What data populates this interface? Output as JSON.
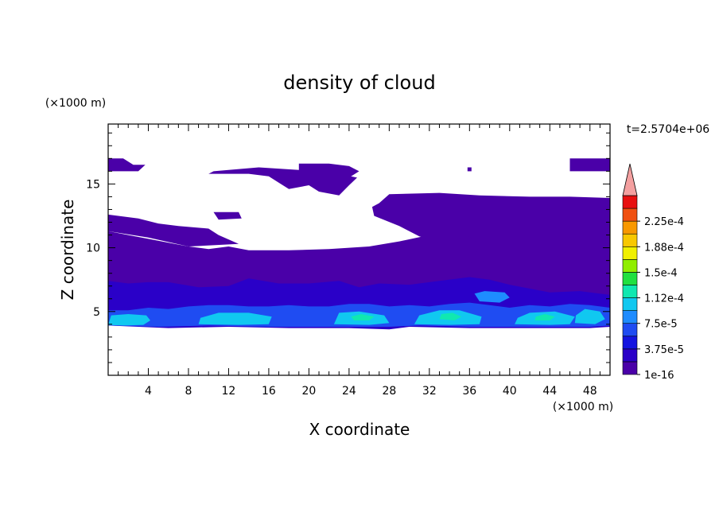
{
  "chart_data": {
    "type": "heatmap",
    "title": "density of cloud",
    "xlabel": "X coordinate",
    "ylabel": "Z coordinate",
    "x_unit": "(×1000 m)",
    "y_unit": "(×1000 m)",
    "time_label": "t=2.5704e+06",
    "xlim": [
      0,
      50
    ],
    "ylim": [
      0,
      19.7
    ],
    "x_ticks": [
      4,
      8,
      12,
      16,
      20,
      24,
      28,
      32,
      36,
      40,
      44,
      48
    ],
    "y_ticks": [
      5,
      10,
      15
    ],
    "colorbar": {
      "labels": [
        "1e-16",
        "3.75e-5",
        "7.5e-5",
        "1.12e-4",
        "1.5e-4",
        "1.88e-4",
        "2.25e-4"
      ],
      "label_levels": [
        0,
        2,
        4,
        6,
        8,
        10,
        12
      ],
      "colors": [
        "#4a00a8",
        "#2a00c8",
        "#1414e0",
        "#1f4cf2",
        "#1e8cff",
        "#10c8f0",
        "#10e8b0",
        "#20e040",
        "#90ee00",
        "#f0f000",
        "#f8c800",
        "#f89800",
        "#f05010",
        "#e81010"
      ],
      "extend_color": "#f4a0a0"
    },
    "regions": [
      {
        "level": 0,
        "points": [
          [
            0,
            4.4
          ],
          [
            3,
            4.1
          ],
          [
            6,
            4.1
          ],
          [
            10,
            4.0
          ],
          [
            14,
            4.1
          ],
          [
            18,
            4.1
          ],
          [
            22,
            4.1
          ],
          [
            26,
            4.1
          ],
          [
            28.5,
            3.9
          ],
          [
            31,
            4.1
          ],
          [
            35,
            4.1
          ],
          [
            39,
            4.1
          ],
          [
            43,
            4.1
          ],
          [
            47,
            4.1
          ],
          [
            50,
            4.1
          ],
          [
            50,
            10.9
          ],
          [
            47,
            11.2
          ],
          [
            44,
            11.0
          ],
          [
            41,
            10.9
          ],
          [
            38,
            11.2
          ],
          [
            35,
            11.2
          ],
          [
            32,
            11.0
          ],
          [
            29,
            10.5
          ],
          [
            26,
            10.1
          ],
          [
            22,
            9.9
          ],
          [
            18,
            9.8
          ],
          [
            14,
            9.8
          ],
          [
            12,
            10.1
          ],
          [
            10,
            9.9
          ],
          [
            8,
            10.1
          ],
          [
            6,
            10.4
          ],
          [
            4,
            10.7
          ],
          [
            2,
            11.0
          ],
          [
            0,
            11.3
          ]
        ]
      },
      {
        "level": 1,
        "points": [
          [
            0,
            3.9
          ],
          [
            6,
            3.7
          ],
          [
            12,
            3.8
          ],
          [
            18,
            3.7
          ],
          [
            24,
            3.7
          ],
          [
            28,
            3.6
          ],
          [
            30,
            3.8
          ],
          [
            36,
            3.7
          ],
          [
            42,
            3.7
          ],
          [
            48,
            3.7
          ],
          [
            50,
            3.8
          ],
          [
            50,
            6.3
          ],
          [
            47,
            6.6
          ],
          [
            44,
            6.5
          ],
          [
            40,
            7.1
          ],
          [
            38,
            7.5
          ],
          [
            36,
            7.7
          ],
          [
            33,
            7.4
          ],
          [
            30,
            7.1
          ],
          [
            27,
            7.2
          ],
          [
            25,
            6.9
          ],
          [
            23,
            7.4
          ],
          [
            20,
            7.2
          ],
          [
            17,
            7.2
          ],
          [
            14,
            7.6
          ],
          [
            12,
            7.0
          ],
          [
            9,
            6.9
          ],
          [
            6,
            7.3
          ],
          [
            4,
            7.3
          ],
          [
            2,
            7.2
          ],
          [
            0,
            7.4
          ]
        ]
      },
      {
        "level": 3,
        "points": [
          [
            0,
            3.9
          ],
          [
            5,
            3.8
          ],
          [
            10,
            3.9
          ],
          [
            16,
            3.8
          ],
          [
            22,
            3.8
          ],
          [
            28,
            3.8
          ],
          [
            31,
            3.9
          ],
          [
            36,
            3.8
          ],
          [
            42,
            3.8
          ],
          [
            48,
            3.8
          ],
          [
            50,
            3.9
          ],
          [
            50,
            5.3
          ],
          [
            48,
            5.5
          ],
          [
            46,
            5.6
          ],
          [
            44,
            5.4
          ],
          [
            42,
            5.5
          ],
          [
            40,
            5.3
          ],
          [
            38,
            5.5
          ],
          [
            36,
            5.7
          ],
          [
            34,
            5.6
          ],
          [
            32,
            5.4
          ],
          [
            30,
            5.5
          ],
          [
            28,
            5.4
          ],
          [
            26,
            5.6
          ],
          [
            24,
            5.6
          ],
          [
            22,
            5.4
          ],
          [
            20,
            5.4
          ],
          [
            18,
            5.5
          ],
          [
            16,
            5.4
          ],
          [
            14,
            5.4
          ],
          [
            12,
            5.5
          ],
          [
            10,
            5.5
          ],
          [
            8,
            5.4
          ],
          [
            6,
            5.2
          ],
          [
            4,
            5.3
          ],
          [
            2,
            5.1
          ],
          [
            0,
            5.1
          ]
        ]
      },
      {
        "level": 4,
        "points": [
          [
            36.5,
            6.4
          ],
          [
            37.5,
            6.6
          ],
          [
            39.5,
            6.5
          ],
          [
            40,
            6.1
          ],
          [
            39,
            5.7
          ],
          [
            37,
            5.8
          ]
        ]
      },
      {
        "level": 5,
        "points": [
          [
            0,
            3.95
          ],
          [
            1.5,
            3.9
          ],
          [
            3.5,
            3.95
          ],
          [
            4.2,
            4.3
          ],
          [
            3.8,
            4.7
          ],
          [
            2,
            4.8
          ],
          [
            0.3,
            4.7
          ]
        ]
      },
      {
        "level": 5,
        "points": [
          [
            9,
            4.0
          ],
          [
            13,
            3.95
          ],
          [
            16,
            4.0
          ],
          [
            16.3,
            4.6
          ],
          [
            14,
            4.9
          ],
          [
            11,
            4.9
          ],
          [
            9.2,
            4.5
          ]
        ]
      },
      {
        "level": 5,
        "points": [
          [
            22.5,
            4.0
          ],
          [
            26,
            3.95
          ],
          [
            28,
            4.1
          ],
          [
            27.5,
            4.7
          ],
          [
            25,
            5.0
          ],
          [
            23,
            4.9
          ]
        ]
      },
      {
        "level": 5,
        "points": [
          [
            30.5,
            4.0
          ],
          [
            34,
            3.95
          ],
          [
            37,
            4.0
          ],
          [
            37.2,
            4.6
          ],
          [
            35,
            5.1
          ],
          [
            33,
            5.1
          ],
          [
            31,
            4.7
          ]
        ]
      },
      {
        "level": 5,
        "points": [
          [
            40.5,
            4.0
          ],
          [
            44,
            3.95
          ],
          [
            46,
            4.0
          ],
          [
            46.5,
            4.6
          ],
          [
            44.5,
            5.0
          ],
          [
            42,
            4.9
          ],
          [
            40.8,
            4.5
          ]
        ]
      },
      {
        "level": 5,
        "points": [
          [
            46.5,
            4.1
          ],
          [
            48.5,
            4.0
          ],
          [
            49.5,
            4.4
          ],
          [
            49,
            5.0
          ],
          [
            47.5,
            5.2
          ],
          [
            46.6,
            4.7
          ]
        ]
      },
      {
        "level": 6,
        "points": [
          [
            24.5,
            4.3
          ],
          [
            26,
            4.3
          ],
          [
            26.5,
            4.6
          ],
          [
            25.2,
            4.8
          ],
          [
            24.2,
            4.6
          ]
        ]
      },
      {
        "level": 6,
        "points": [
          [
            33,
            4.4
          ],
          [
            34.5,
            4.3
          ],
          [
            35.2,
            4.6
          ],
          [
            34.3,
            4.9
          ],
          [
            33.2,
            4.8
          ]
        ]
      },
      {
        "level": 6,
        "points": [
          [
            42.5,
            4.3
          ],
          [
            44,
            4.3
          ],
          [
            44.5,
            4.6
          ],
          [
            43.5,
            4.8
          ],
          [
            42.6,
            4.6
          ]
        ]
      },
      {
        "level": 0,
        "points": [
          [
            0,
            12.6
          ],
          [
            3,
            12.3
          ],
          [
            5,
            11.9
          ],
          [
            7,
            11.7
          ],
          [
            10,
            11.5
          ],
          [
            11,
            11.0
          ],
          [
            13,
            10.3
          ],
          [
            8,
            10.1
          ],
          [
            4,
            10.8
          ],
          [
            0,
            11.3
          ]
        ]
      },
      {
        "level": 0,
        "points": [
          [
            0,
            17.0
          ],
          [
            1.5,
            17.0
          ],
          [
            2.5,
            16.5
          ],
          [
            3.7,
            16.5
          ],
          [
            3,
            16.0
          ],
          [
            0,
            16.0
          ]
        ]
      },
      {
        "level": 0,
        "points": [
          [
            10,
            15.8
          ],
          [
            14,
            15.8
          ],
          [
            16,
            15.6
          ],
          [
            17,
            15.1
          ],
          [
            18,
            14.6
          ],
          [
            20,
            14.9
          ],
          [
            21,
            14.4
          ],
          [
            23,
            14.1
          ],
          [
            24,
            14.9
          ],
          [
            24.8,
            15.5
          ],
          [
            23,
            15.8
          ],
          [
            21,
            16.1
          ],
          [
            19,
            16.1
          ],
          [
            17,
            16.2
          ],
          [
            15,
            16.3
          ],
          [
            12,
            16.1
          ],
          [
            10.5,
            16.0
          ]
        ]
      },
      {
        "level": 0,
        "points": [
          [
            19,
            16.6
          ],
          [
            22,
            16.6
          ],
          [
            24,
            16.4
          ],
          [
            25,
            16.0
          ],
          [
            24,
            15.5
          ],
          [
            21,
            15.6
          ],
          [
            19,
            15.8
          ]
        ]
      },
      {
        "level": 0,
        "points": [
          [
            28,
            14.2
          ],
          [
            33,
            14.3
          ],
          [
            37,
            14.1
          ],
          [
            42,
            14.0
          ],
          [
            46,
            14.0
          ],
          [
            50,
            13.9
          ],
          [
            50,
            9.9
          ],
          [
            47,
            10.4
          ],
          [
            45,
            9.4
          ],
          [
            43,
            8.4
          ],
          [
            42,
            8.1
          ],
          [
            40,
            8.6
          ],
          [
            38,
            9.1
          ],
          [
            36,
            8.6
          ],
          [
            36.5,
            9.3
          ],
          [
            37,
            10.2
          ],
          [
            36,
            10.9
          ],
          [
            33,
            10.4
          ],
          [
            31,
            10.9
          ],
          [
            29,
            11.7
          ],
          [
            26.5,
            12.5
          ],
          [
            26.3,
            13.2
          ],
          [
            27,
            13.5
          ]
        ]
      },
      {
        "level": 0,
        "points": [
          [
            46,
            17.0
          ],
          [
            50,
            17.0
          ],
          [
            50,
            16.0
          ],
          [
            46,
            16.0
          ]
        ]
      },
      {
        "level": 0,
        "points": [
          [
            10.5,
            12.8
          ],
          [
            13,
            12.8
          ],
          [
            13.3,
            12.3
          ],
          [
            11,
            12.2
          ]
        ]
      },
      {
        "level": 0,
        "points": [
          [
            35.8,
            16.3
          ],
          [
            36.2,
            16.3
          ],
          [
            36.2,
            16.0
          ],
          [
            35.8,
            16.0
          ]
        ]
      }
    ]
  }
}
